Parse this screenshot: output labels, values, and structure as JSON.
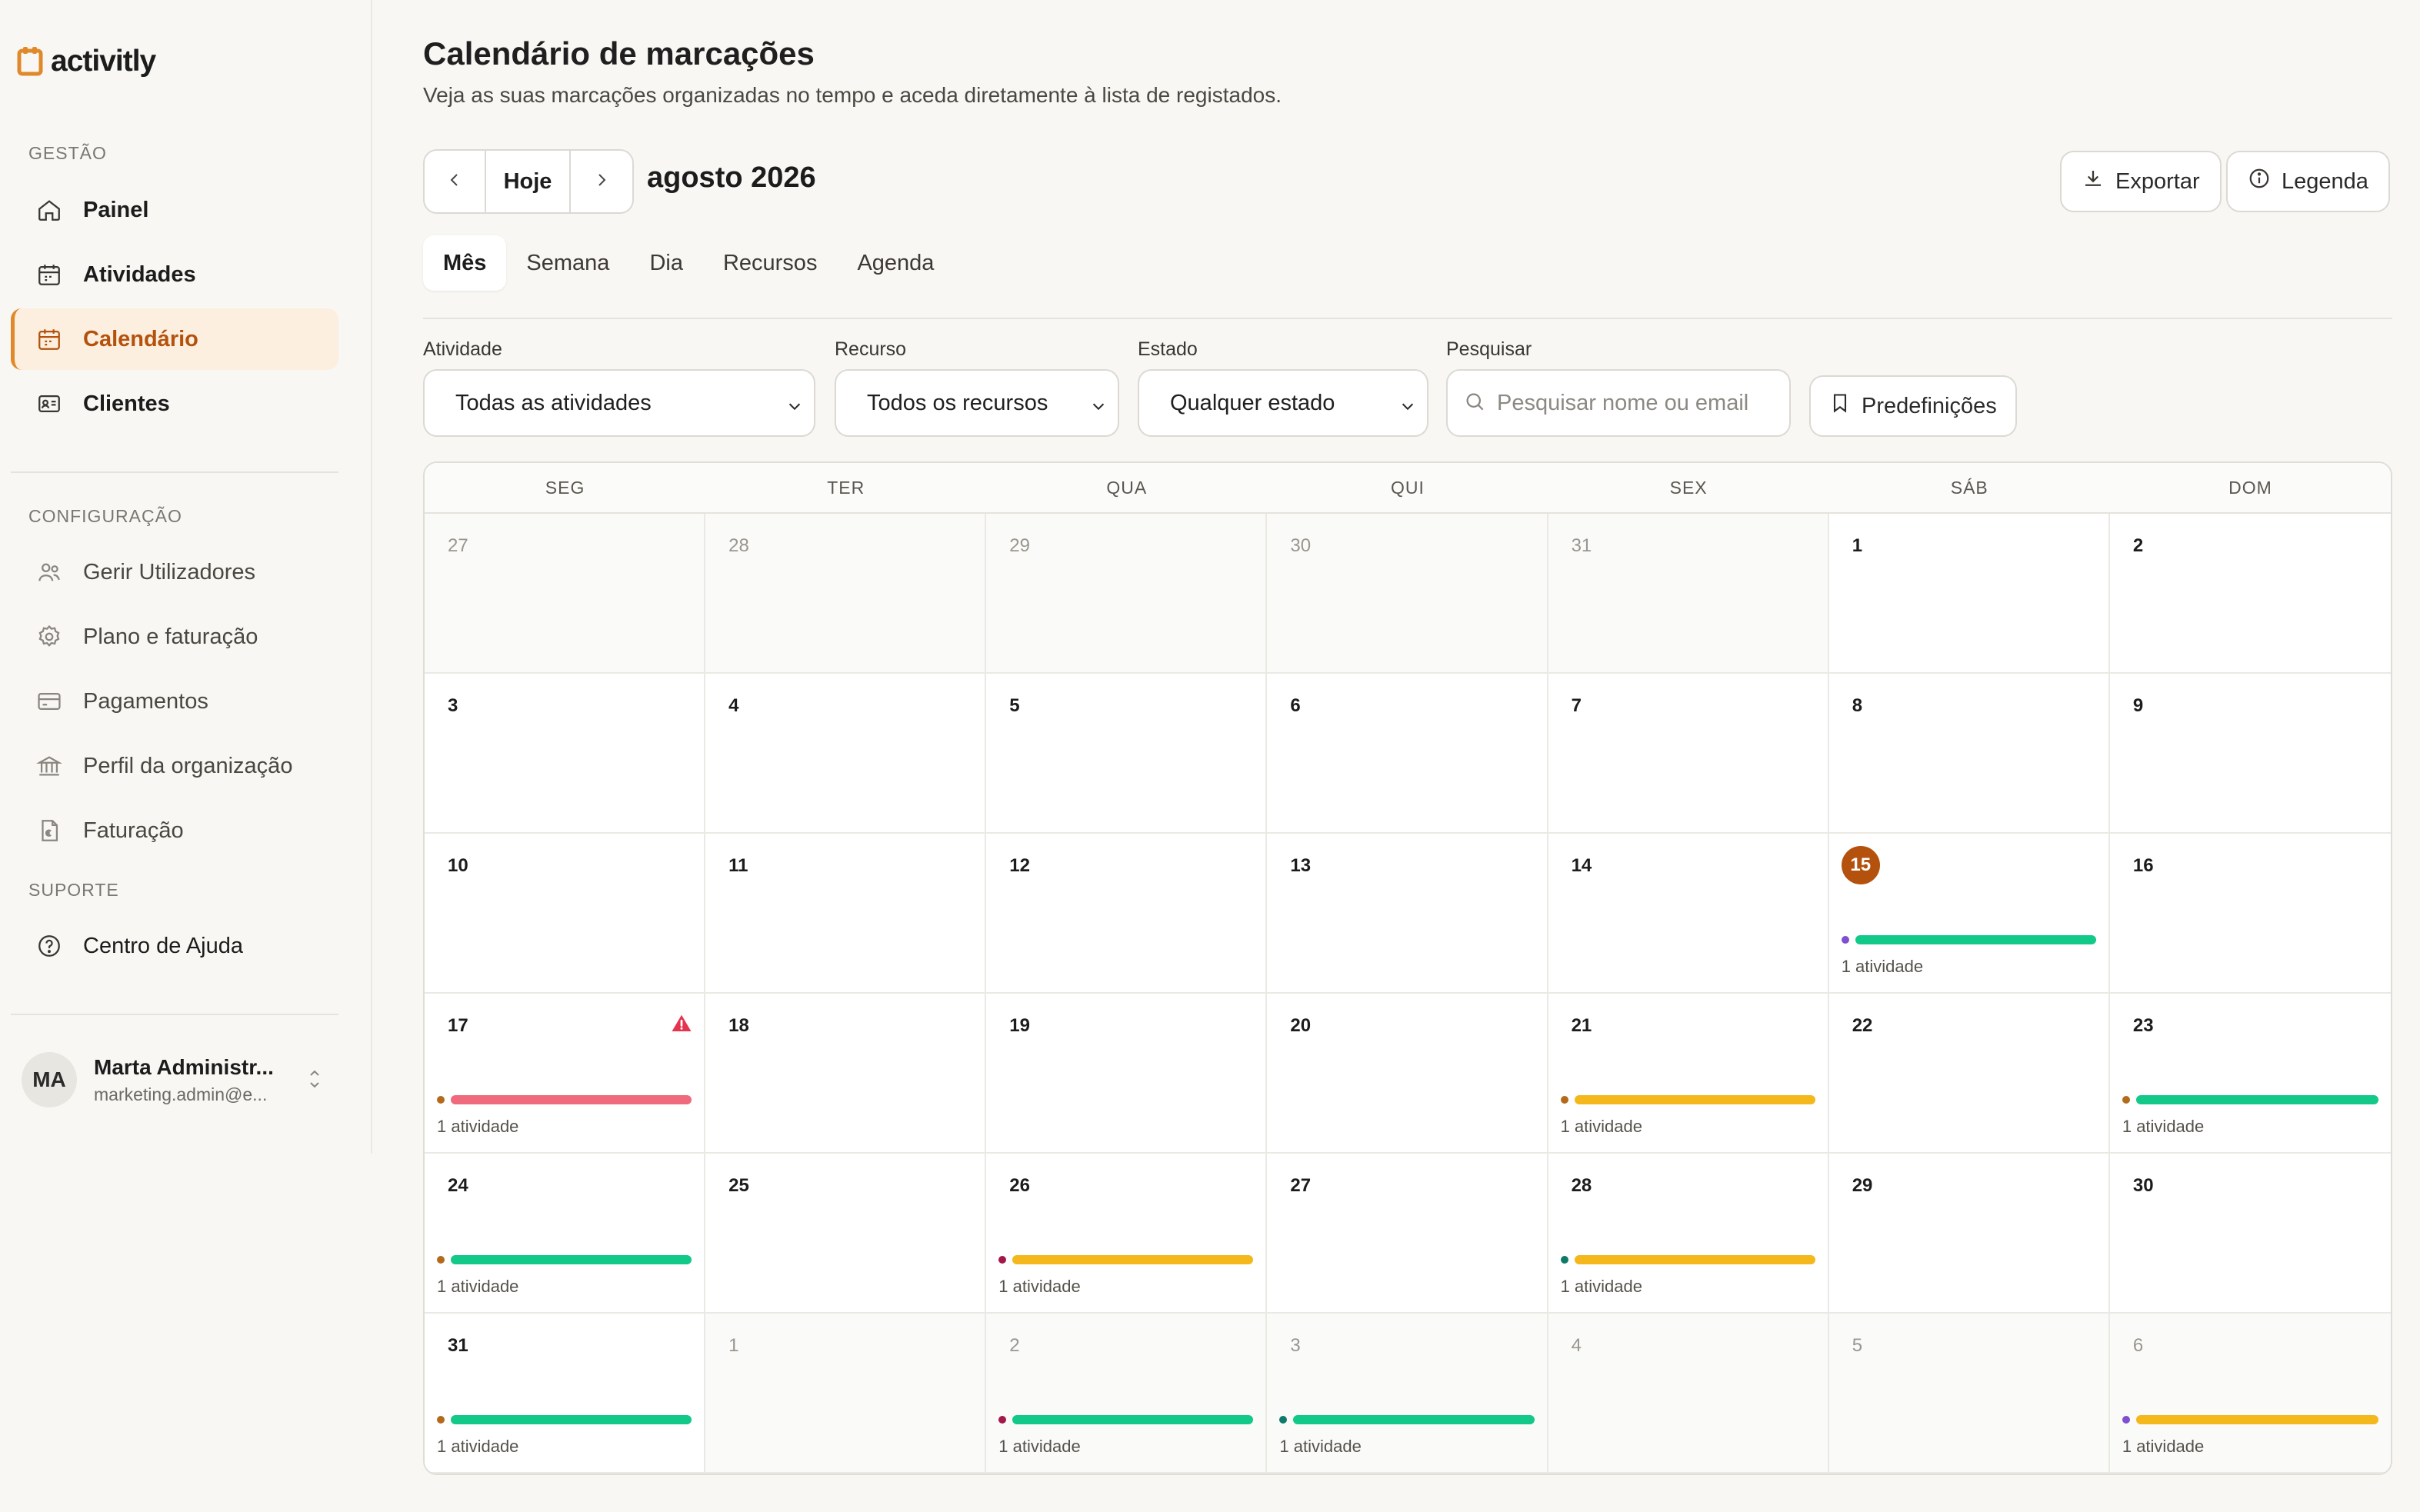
{
  "app": {
    "logo_text": "activitly",
    "brand_color": "#e0892a",
    "accent_color": "#b4520d"
  },
  "sidebar": {
    "section_gestao": "GESTÃO",
    "section_config": "CONFIGURAÇÃO",
    "section_suporte": "SUPORTE",
    "items": [
      {
        "label": "Painel",
        "icon": "home-icon",
        "active": false
      },
      {
        "label": "Atividades",
        "icon": "calendar-icon",
        "active": false
      },
      {
        "label": "Calendário",
        "icon": "calendar-icon",
        "active": true
      },
      {
        "label": "Clientes",
        "icon": "id-card-icon",
        "active": false
      },
      {
        "label": "Gerir Utilizadores",
        "icon": "users-icon",
        "active": false
      },
      {
        "label": "Plano e faturação",
        "icon": "gear-icon",
        "active": false
      },
      {
        "label": "Pagamentos",
        "icon": "credit-card-icon",
        "active": false
      },
      {
        "label": "Perfil da organização",
        "icon": "bank-icon",
        "active": false
      },
      {
        "label": "Faturação",
        "icon": "invoice-icon",
        "active": false
      },
      {
        "label": "Centro de Ajuda",
        "icon": "help-icon",
        "active": false
      }
    ],
    "user": {
      "initials": "MA",
      "name": "Marta Administr...",
      "email": "marketing.admin@e..."
    }
  },
  "header": {
    "title": "Calendário de marcações",
    "subtitle": "Veja as suas marcações organizadas no tempo e aceda diretamente à lista de registados.",
    "today_label": "Hoje",
    "month_label": "agosto 2026",
    "export_label": "Exportar",
    "legend_label": "Legenda"
  },
  "tabs": [
    "Mês",
    "Semana",
    "Dia",
    "Recursos",
    "Agenda"
  ],
  "active_tab": "Mês",
  "filters": {
    "activity_label": "Atividade",
    "activity_value": "Todas as atividades",
    "resource_label": "Recurso",
    "resource_value": "Todos os recursos",
    "status_label": "Estado",
    "status_value": "Qualquer estado",
    "search_label": "Pesquisar",
    "search_placeholder": "Pesquisar nome ou email",
    "presets_label": "Predefinições"
  },
  "calendar": {
    "weekdays": [
      "SEG",
      "TER",
      "QUA",
      "QUI",
      "SEX",
      "SÁB",
      "DOM"
    ],
    "today_color": "#b4520d",
    "days": [
      {
        "n": "27",
        "out": true
      },
      {
        "n": "28",
        "out": true
      },
      {
        "n": "29",
        "out": true
      },
      {
        "n": "30",
        "out": true
      },
      {
        "n": "31",
        "out": true
      },
      {
        "n": "1"
      },
      {
        "n": "2"
      },
      {
        "n": "3"
      },
      {
        "n": "4"
      },
      {
        "n": "5"
      },
      {
        "n": "6"
      },
      {
        "n": "7"
      },
      {
        "n": "8"
      },
      {
        "n": "9"
      },
      {
        "n": "10"
      },
      {
        "n": "11"
      },
      {
        "n": "12"
      },
      {
        "n": "13"
      },
      {
        "n": "14"
      },
      {
        "n": "15",
        "today": true,
        "event": {
          "dot": "#7e4fd0",
          "bar": "#12c98a",
          "count": "1 atividade"
        }
      },
      {
        "n": "16"
      },
      {
        "n": "17",
        "warn": true,
        "event": {
          "dot": "#b36a1b",
          "bar": "#ef6a7c",
          "count": "1 atividade"
        }
      },
      {
        "n": "18"
      },
      {
        "n": "19"
      },
      {
        "n": "20"
      },
      {
        "n": "21",
        "event": {
          "dot": "#b36a1b",
          "bar": "#f5b81c",
          "count": "1 atividade"
        }
      },
      {
        "n": "22"
      },
      {
        "n": "23",
        "event": {
          "dot": "#b36a1b",
          "bar": "#12c98a",
          "count": "1 atividade"
        }
      },
      {
        "n": "24",
        "event": {
          "dot": "#b36a1b",
          "bar": "#12c98a",
          "count": "1 atividade"
        }
      },
      {
        "n": "25"
      },
      {
        "n": "26",
        "event": {
          "dot": "#a3174a",
          "bar": "#f5b81c",
          "count": "1 atividade"
        }
      },
      {
        "n": "27"
      },
      {
        "n": "28",
        "event": {
          "dot": "#0f7a6a",
          "bar": "#f5b81c",
          "count": "1 atividade"
        }
      },
      {
        "n": "29"
      },
      {
        "n": "30"
      },
      {
        "n": "31",
        "event": {
          "dot": "#b36a1b",
          "bar": "#12c98a",
          "count": "1 atividade"
        }
      },
      {
        "n": "1",
        "out": true
      },
      {
        "n": "2",
        "out": true,
        "event": {
          "dot": "#a3174a",
          "bar": "#12c98a",
          "count": "1 atividade"
        }
      },
      {
        "n": "3",
        "out": true,
        "event": {
          "dot": "#0f7a6a",
          "bar": "#12c98a",
          "count": "1 atividade"
        }
      },
      {
        "n": "4",
        "out": true
      },
      {
        "n": "5",
        "out": true
      },
      {
        "n": "6",
        "out": true,
        "event": {
          "dot": "#7e4fd0",
          "bar": "#f5b81c",
          "count": "1 atividade"
        }
      }
    ]
  }
}
